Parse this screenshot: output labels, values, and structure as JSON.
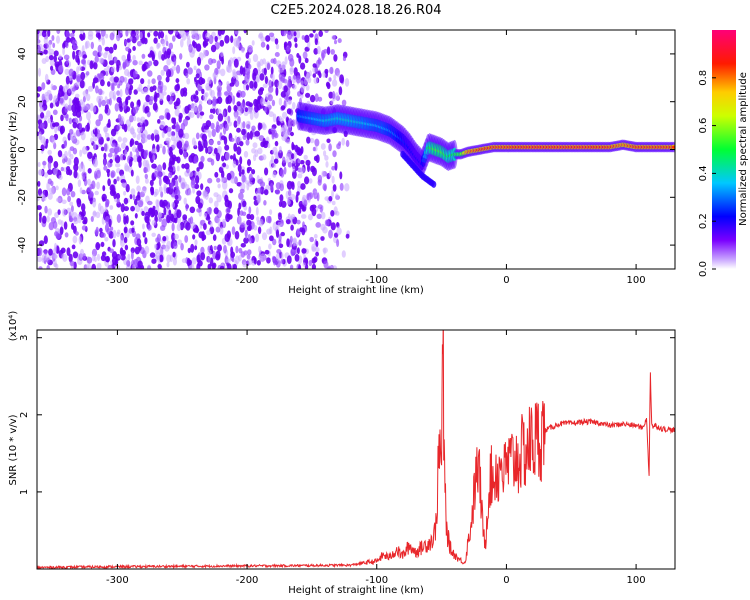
{
  "figure_title": "C2E5.2024.028.18.26.R04",
  "chart_data": [
    {
      "type": "heatmap",
      "xlabel": "Height of straight line (km)",
      "ylabel": "Frequency (Hz)",
      "xlim": [
        -362,
        130
      ],
      "ylim": [
        -50,
        50
      ],
      "x_ticks": [
        -300,
        -200,
        -100,
        0,
        100
      ],
      "x_tick_labels": [
        "-300",
        "-200",
        "-100",
        "0",
        "100"
      ],
      "y_ticks": [
        -40,
        -20,
        0,
        20,
        40
      ],
      "y_tick_labels": [
        "-40",
        "-20",
        "0",
        "20",
        "40"
      ],
      "colorbar": {
        "label": "Normalized spectral amplitude",
        "range": [
          0,
          1
        ],
        "ticks": [
          0,
          0.2,
          0.4,
          0.6,
          0.8
        ],
        "tick_labels": [
          "0.0",
          "0.2",
          "0.4",
          "0.6",
          "0.8"
        ],
        "colors": [
          "#ffffff",
          "#7a00ff",
          "#0000ff",
          "#00c8ff",
          "#00ff00",
          "#ffff00",
          "#ff0000",
          "#ff0066"
        ]
      },
      "noise_region_x": [
        -362,
        -122
      ],
      "signal_track": {
        "x": [
          -160,
          -150,
          -140,
          -130,
          -120,
          -110,
          -100,
          -95,
          -90,
          -85,
          -80,
          -75,
          -70,
          -65,
          -60,
          -55,
          -50,
          -45,
          -40,
          -35,
          -30,
          -20,
          -10,
          0,
          20,
          40,
          60,
          80,
          90,
          100,
          110,
          120,
          130
        ],
        "frequency": [
          14,
          13,
          12,
          13,
          12,
          11,
          10,
          9,
          8,
          6,
          4,
          1,
          -3,
          -6,
          1,
          0,
          -1,
          -3,
          -2,
          -2,
          -1,
          0,
          1,
          1,
          1,
          1,
          1,
          1,
          2,
          1,
          1,
          1,
          1
        ],
        "amplitude": [
          0.3,
          0.35,
          0.38,
          0.4,
          0.4,
          0.38,
          0.35,
          0.35,
          0.32,
          0.3,
          0.25,
          0.22,
          0.2,
          0.2,
          0.5,
          0.55,
          0.55,
          0.5,
          0.5,
          0.55,
          0.8,
          0.85,
          0.85,
          0.85,
          0.88,
          0.88,
          0.88,
          0.85,
          0.8,
          0.85,
          0.85,
          0.85,
          0.85
        ]
      },
      "secondary_track": {
        "x": [
          -80,
          -75,
          -70,
          -65,
          -60,
          -55
        ],
        "frequency": [
          -2,
          -5,
          -8,
          -11,
          -13,
          -15
        ]
      }
    },
    {
      "type": "line",
      "xlabel": "Height of straight line (km)",
      "ylabel": "SNR (10 * v/v)",
      "y_multiplier": "(x10⁴)",
      "xlim": [
        -362,
        130
      ],
      "ylim": [
        0,
        31000
      ],
      "x_ticks": [
        -300,
        -200,
        -100,
        0,
        100
      ],
      "x_tick_labels": [
        "-300",
        "-200",
        "-100",
        "0",
        "100"
      ],
      "y_ticks": [
        10000,
        20000,
        30000
      ],
      "y_tick_labels": [
        "1",
        "2",
        "3"
      ],
      "series": [
        {
          "color": "#e8262a",
          "x": [
            -362,
            -300,
            -200,
            -150,
            -120,
            -110,
            -100,
            -95,
            -90,
            -85,
            -80,
            -75,
            -70,
            -65,
            -60,
            -56,
            -54,
            -52,
            -50,
            -49,
            -48,
            -47,
            -46,
            -45,
            -44,
            -43,
            -42,
            -40,
            -38,
            -36,
            -34,
            -32,
            -30,
            -28,
            -26,
            -24,
            -22,
            -20,
            -18,
            -16,
            -14,
            -12,
            -10,
            -8,
            -6,
            -4,
            -2,
            0,
            5,
            10,
            15,
            20,
            25,
            30,
            40,
            50,
            60,
            70,
            80,
            90,
            100,
            105,
            108,
            110,
            111,
            112,
            113,
            115,
            120,
            125,
            130
          ],
          "y": [
            200,
            300,
            400,
            450,
            500,
            800,
            1000,
            1800,
            1500,
            2500,
            1700,
            3000,
            2200,
            2800,
            3400,
            4000,
            6500,
            15500,
            14000,
            31000,
            13000,
            9000,
            5000,
            4000,
            3200,
            2600,
            2200,
            1900,
            1500,
            1200,
            1000,
            800,
            3000,
            5000,
            7800,
            11000,
            13500,
            10500,
            4500,
            3500,
            10000,
            12000,
            11500,
            13000,
            12000,
            14500,
            12000,
            13500,
            14000,
            14500,
            15500,
            16500,
            17000,
            18000,
            18800,
            18900,
            19100,
            19000,
            18600,
            18800,
            18600,
            18300,
            19500,
            12200,
            25500,
            19000,
            18400,
            18600,
            18200,
            18100,
            18000
          ]
        }
      ]
    }
  ]
}
